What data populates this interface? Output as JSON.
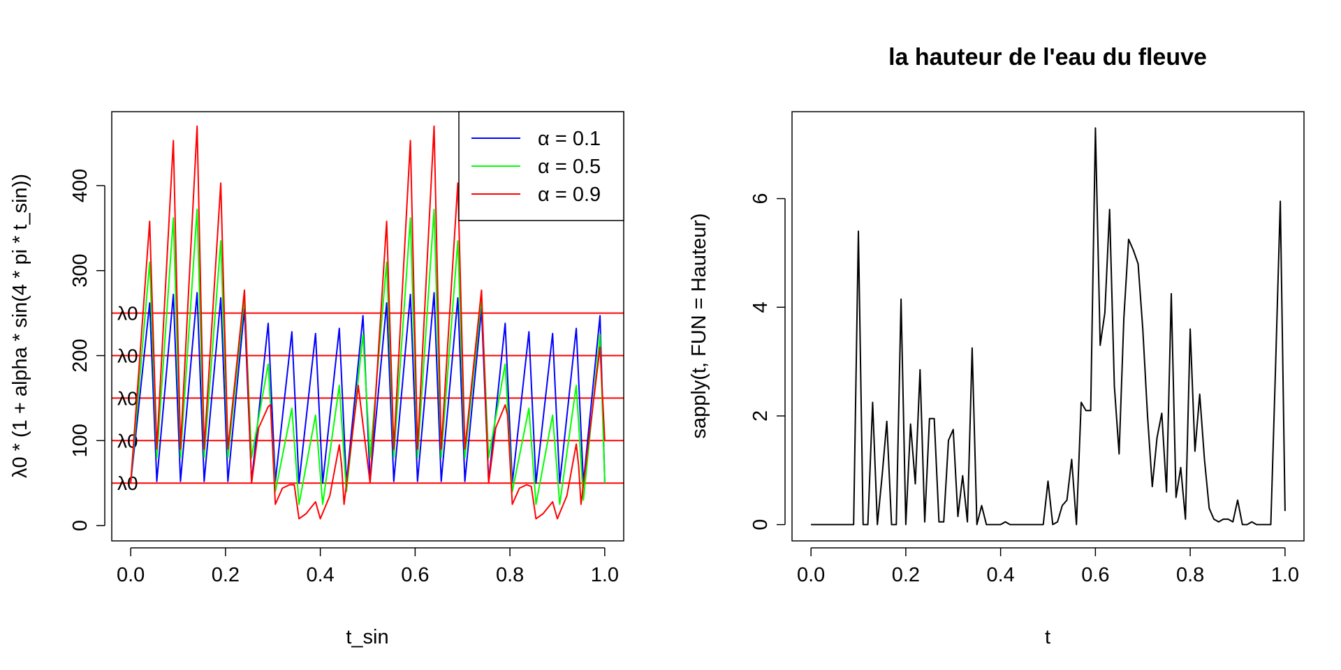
{
  "chart_data": [
    {
      "type": "line",
      "title": "",
      "xlabel": "t_sin",
      "ylabel": "λ0 * (1 + alpha * sin(4 * pi * t_sin))",
      "xlim": [
        -0.04,
        1.04
      ],
      "ylim": [
        -18,
        487
      ],
      "x_ticks": [
        0.0,
        0.2,
        0.4,
        0.6,
        0.8,
        1.0
      ],
      "x_tick_labels": [
        "0.0",
        "0.2",
        "0.4",
        "0.6",
        "0.8",
        "1.0"
      ],
      "y_ticks": [
        0,
        100,
        200,
        300,
        400
      ],
      "y_tick_labels": [
        "0",
        "100",
        "200",
        "300",
        "400"
      ],
      "series": [
        {
          "name": "α = 0.1",
          "color": "#0000FF",
          "x": [
            0.0,
            0.04,
            0.055,
            0.09,
            0.105,
            0.14,
            0.155,
            0.19,
            0.205,
            0.24,
            0.255,
            0.29,
            0.305,
            0.34,
            0.355,
            0.39,
            0.405,
            0.44,
            0.455,
            0.49,
            0.505,
            0.54,
            0.555,
            0.59,
            0.605,
            0.64,
            0.655,
            0.69,
            0.705,
            0.74,
            0.755,
            0.79,
            0.805,
            0.84,
            0.855,
            0.89,
            0.905,
            0.94,
            0.955,
            0.99,
            1.0
          ],
          "values": [
            50,
            262,
            52,
            272,
            52,
            274,
            52,
            268,
            52,
            255,
            52,
            238,
            52,
            228,
            50,
            226,
            50,
            232,
            50,
            247,
            52,
            262,
            52,
            272,
            52,
            274,
            52,
            268,
            52,
            255,
            52,
            238,
            50,
            228,
            50,
            226,
            50,
            232,
            50,
            247,
            50
          ]
        },
        {
          "name": "α = 0.5",
          "color": "#00FF00",
          "x": [
            0.0,
            0.04,
            0.055,
            0.09,
            0.105,
            0.14,
            0.155,
            0.19,
            0.205,
            0.24,
            0.255,
            0.29,
            0.305,
            0.34,
            0.355,
            0.39,
            0.405,
            0.44,
            0.455,
            0.49,
            0.505,
            0.54,
            0.555,
            0.59,
            0.605,
            0.64,
            0.655,
            0.69,
            0.705,
            0.74,
            0.755,
            0.79,
            0.805,
            0.84,
            0.855,
            0.89,
            0.905,
            0.94,
            0.955,
            0.99,
            1.0
          ],
          "values": [
            50,
            310,
            80,
            362,
            80,
            372,
            80,
            335,
            80,
            268,
            80,
            190,
            40,
            138,
            25,
            130,
            25,
            165,
            40,
            225,
            80,
            310,
            80,
            362,
            80,
            372,
            80,
            335,
            80,
            268,
            80,
            190,
            40,
            138,
            25,
            130,
            25,
            165,
            30,
            225,
            50
          ]
        },
        {
          "name": "α = 0.9",
          "color": "#FF0000",
          "x": [
            0.0,
            0.04,
            0.055,
            0.09,
            0.105,
            0.14,
            0.155,
            0.19,
            0.205,
            0.24,
            0.255,
            0.27,
            0.29,
            0.295,
            0.305,
            0.32,
            0.335,
            0.345,
            0.355,
            0.37,
            0.39,
            0.4,
            0.42,
            0.44,
            0.445,
            0.45,
            0.48,
            0.505,
            0.54,
            0.555,
            0.59,
            0.605,
            0.64,
            0.655,
            0.69,
            0.705,
            0.74,
            0.755,
            0.77,
            0.79,
            0.795,
            0.805,
            0.82,
            0.835,
            0.845,
            0.855,
            0.87,
            0.89,
            0.9,
            0.92,
            0.94,
            0.945,
            0.95,
            0.99,
            1.0
          ],
          "values": [
            50,
            358,
            90,
            453,
            90,
            470,
            90,
            403,
            90,
            277,
            50,
            115,
            140,
            142,
            25,
            44,
            48,
            48,
            8,
            14,
            28,
            8,
            35,
            95,
            70,
            25,
            165,
            50,
            358,
            90,
            453,
            90,
            470,
            90,
            403,
            90,
            277,
            50,
            115,
            142,
            130,
            25,
            44,
            48,
            46,
            8,
            14,
            28,
            8,
            35,
            96,
            70,
            25,
            210,
            100
          ]
        }
      ],
      "hlines": [
        {
          "y": 50,
          "label": "λ0",
          "color": "#FF0000"
        },
        {
          "y": 100,
          "label": "λ0",
          "color": "#FF0000"
        },
        {
          "y": 150,
          "label": "λ0",
          "color": "#FF0000"
        },
        {
          "y": 200,
          "label": "λ0",
          "color": "#FF0000"
        },
        {
          "y": 250,
          "label": "λ0",
          "color": "#FF0000"
        }
      ],
      "legend_position": "top-right",
      "legend": [
        "α = 0.1",
        "α = 0.5",
        "α = 0.9"
      ],
      "grid": false
    },
    {
      "type": "line",
      "title": "la hauteur de l'eau du fleuve",
      "xlabel": "t",
      "ylabel": "sapply(t, FUN = Hauteur)",
      "xlim": [
        -0.04,
        1.04
      ],
      "ylim": [
        -0.3,
        7.6
      ],
      "x_ticks": [
        0.0,
        0.2,
        0.4,
        0.6,
        0.8,
        1.0
      ],
      "x_tick_labels": [
        "0.0",
        "0.2",
        "0.4",
        "0.6",
        "0.8",
        "1.0"
      ],
      "y_ticks": [
        0,
        2,
        4,
        6
      ],
      "y_tick_labels": [
        "0",
        "2",
        "4",
        "6"
      ],
      "series": [
        {
          "name": "",
          "color": "#000000",
          "x": [
            0.0,
            0.01,
            0.02,
            0.03,
            0.04,
            0.05,
            0.06,
            0.07,
            0.08,
            0.09,
            0.1,
            0.11,
            0.12,
            0.13,
            0.14,
            0.15,
            0.16,
            0.17,
            0.18,
            0.19,
            0.2,
            0.21,
            0.22,
            0.23,
            0.24,
            0.25,
            0.26,
            0.27,
            0.28,
            0.29,
            0.3,
            0.31,
            0.32,
            0.33,
            0.34,
            0.35,
            0.36,
            0.37,
            0.38,
            0.39,
            0.4,
            0.41,
            0.42,
            0.43,
            0.44,
            0.45,
            0.46,
            0.47,
            0.48,
            0.49,
            0.5,
            0.51,
            0.52,
            0.53,
            0.54,
            0.55,
            0.56,
            0.57,
            0.58,
            0.59,
            0.6,
            0.61,
            0.62,
            0.63,
            0.64,
            0.65,
            0.66,
            0.67,
            0.68,
            0.69,
            0.7,
            0.71,
            0.72,
            0.73,
            0.74,
            0.75,
            0.76,
            0.77,
            0.78,
            0.79,
            0.8,
            0.81,
            0.82,
            0.83,
            0.84,
            0.85,
            0.86,
            0.87,
            0.88,
            0.89,
            0.9,
            0.91,
            0.92,
            0.93,
            0.94,
            0.95,
            0.96,
            0.97,
            0.98,
            0.99,
            1.0
          ],
          "values": [
            0,
            0,
            0,
            0,
            0,
            0,
            0,
            0,
            0,
            0,
            5.4,
            0,
            0,
            2.25,
            0,
            0.9,
            1.9,
            0,
            0,
            4.15,
            0,
            1.85,
            0.75,
            2.85,
            0.05,
            1.95,
            1.95,
            0.05,
            0.05,
            1.55,
            1.75,
            0.15,
            0.9,
            0.05,
            3.25,
            0,
            0.35,
            0,
            0,
            0,
            0,
            0.05,
            0,
            0,
            0,
            0,
            0,
            0,
            0,
            0,
            0.8,
            0,
            0.05,
            0.35,
            0.45,
            1.2,
            0,
            2.25,
            2.1,
            2.1,
            7.3,
            3.3,
            3.9,
            5.8,
            2.55,
            1.3,
            3.8,
            5.25,
            5.05,
            4.8,
            3.6,
            2.0,
            0.7,
            1.6,
            2.05,
            0.6,
            4.25,
            0.5,
            1.05,
            0.1,
            3.6,
            1.35,
            2.4,
            1.2,
            0.3,
            0.1,
            0.05,
            0.1,
            0.1,
            0.05,
            0.45,
            0,
            0,
            0.05,
            0,
            0,
            0,
            0,
            2.9,
            5.95,
            0.25
          ]
        }
      ],
      "grid": false
    }
  ]
}
